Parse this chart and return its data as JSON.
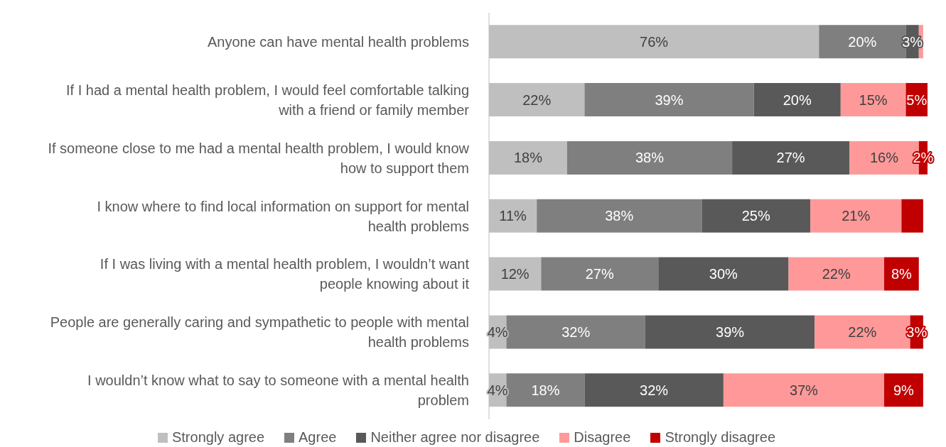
{
  "chart_data": {
    "type": "bar",
    "orientation": "horizontal",
    "stacked": true,
    "legend": "bottom",
    "categories": [
      "Anyone can have mental health problems",
      "If I had a mental health problem, I would feel comfortable talking with a friend or family member",
      "If someone close to me had a mental health problem, I would know how to support them",
      "I know where to find local information on support for mental health problems",
      "If I was living with a mental health problem, I wouldn’t want people knowing about it",
      "People are generally caring and sympathetic to people with mental health problems",
      "I wouldn’t know what to say to someone with a mental health problem"
    ],
    "series": [
      {
        "name": "Strongly agree",
        "color": "#bfbfbf",
        "values": [
          76,
          22,
          18,
          11,
          12,
          4,
          4
        ],
        "value_labels": [
          "76%",
          "22%",
          "18%",
          "11%",
          "12%",
          "4%",
          "4%"
        ]
      },
      {
        "name": "Agree",
        "color": "#7f7f7f",
        "values": [
          20,
          39,
          38,
          38,
          27,
          32,
          18
        ],
        "value_labels": [
          "20%",
          "39%",
          "38%",
          "38%",
          "27%",
          "32%",
          "18%"
        ]
      },
      {
        "name": "Neither agree nor disagree",
        "color": "#595959",
        "values": [
          3,
          20,
          27,
          25,
          30,
          39,
          32
        ],
        "value_labels": [
          "3%",
          "20%",
          "27%",
          "25%",
          "30%",
          "39%",
          "32%"
        ]
      },
      {
        "name": "Disagree",
        "color": "#ff9999",
        "values": [
          1,
          15,
          16,
          21,
          22,
          22,
          37
        ],
        "value_labels": [
          null,
          "15%",
          "16%",
          "21%",
          "22%",
          "22%",
          "37%"
        ]
      },
      {
        "name": "Strongly disagree",
        "color": "#c00000",
        "values": [
          0,
          5,
          2,
          5,
          8,
          3,
          9
        ],
        "value_labels": [
          null,
          "5%",
          "2%",
          null,
          "8%",
          "3%",
          "9%"
        ]
      }
    ]
  }
}
